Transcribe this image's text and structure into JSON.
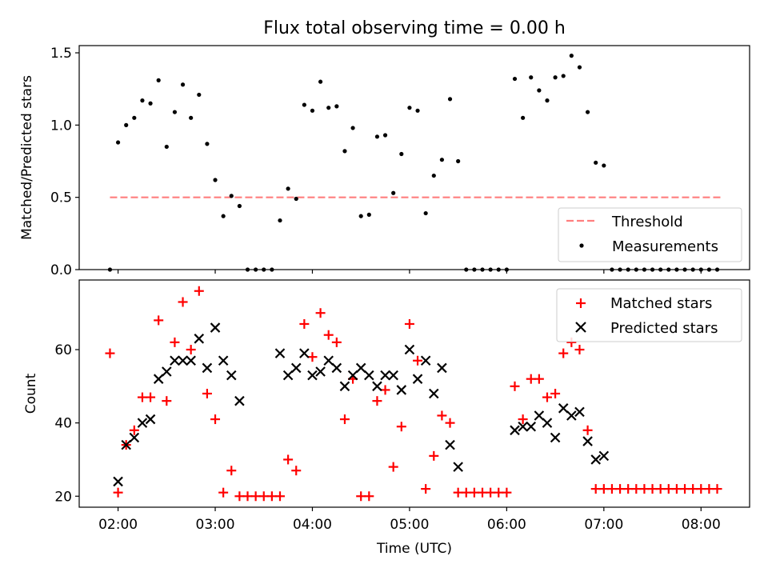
{
  "chart_data": [
    {
      "type": "scatter",
      "title": "Flux total observing time = 0.00 h",
      "ylabel": "Matched/Predicted stars",
      "xlabel": "",
      "xlim": [
        "01:36",
        "08:30"
      ],
      "ylim": [
        0.0,
        1.55
      ],
      "yticks": [
        "0.0",
        "0.5",
        "1.0",
        "1.5"
      ],
      "xticks": [
        "02:00",
        "03:00",
        "04:00",
        "05:00",
        "06:00",
        "07:00",
        "08:00"
      ],
      "grid": false,
      "legend_position": "lower-right",
      "threshold": {
        "name": "Threshold",
        "value": 0.5,
        "x_start": "01:55",
        "x_end": "08:12",
        "color": "#ff7f7f"
      },
      "series": [
        {
          "name": "Measurements",
          "color": "#000000",
          "x": [
            "01:55",
            "02:00",
            "02:05",
            "02:10",
            "02:15",
            "02:20",
            "02:25",
            "02:30",
            "02:35",
            "02:40",
            "02:45",
            "02:50",
            "02:55",
            "03:00",
            "03:05",
            "03:10",
            "03:15",
            "03:20",
            "03:25",
            "03:30",
            "03:35",
            "03:40",
            "03:45",
            "03:50",
            "03:55",
            "04:00",
            "04:05",
            "04:10",
            "04:15",
            "04:20",
            "04:25",
            "04:30",
            "04:35",
            "04:40",
            "04:45",
            "04:50",
            "04:55",
            "05:00",
            "05:05",
            "05:10",
            "05:15",
            "05:20",
            "05:25",
            "05:30",
            "05:35",
            "05:40",
            "05:45",
            "05:50",
            "05:55",
            "06:00",
            "06:05",
            "06:10",
            "06:15",
            "06:20",
            "06:25",
            "06:30",
            "06:35",
            "06:40",
            "06:45",
            "06:50",
            "06:55",
            "07:00",
            "07:05",
            "07:10",
            "07:15",
            "07:20",
            "07:25",
            "07:30",
            "07:35",
            "07:40",
            "07:45",
            "07:50",
            "07:55",
            "08:00",
            "08:05",
            "08:10"
          ],
          "y": [
            0.0,
            0.88,
            1.0,
            1.05,
            1.17,
            1.15,
            1.31,
            0.85,
            1.09,
            1.28,
            1.05,
            1.21,
            0.87,
            0.62,
            0.37,
            0.51,
            0.44,
            0.0,
            0.0,
            0.0,
            0.0,
            0.34,
            0.56,
            0.49,
            1.14,
            1.1,
            1.3,
            1.12,
            1.13,
            0.82,
            0.98,
            0.37,
            0.38,
            0.92,
            0.93,
            0.53,
            0.8,
            1.12,
            1.1,
            0.39,
            0.65,
            0.76,
            1.18,
            0.75,
            0.0,
            0.0,
            0.0,
            0.0,
            0.0,
            0.0,
            1.32,
            1.05,
            1.33,
            1.24,
            1.17,
            1.33,
            1.34,
            1.48,
            1.4,
            1.09,
            0.74,
            0.72,
            0.0,
            0.0,
            0.0,
            0.0,
            0.0,
            0.0,
            0.0,
            0.0,
            0.0,
            0.0,
            0.0,
            0.0,
            0.0,
            0.0
          ]
        }
      ]
    },
    {
      "type": "scatter",
      "title": "",
      "xlabel": "Time (UTC)",
      "ylabel": "Count",
      "xlim": [
        "01:36",
        "08:30"
      ],
      "ylim": [
        17,
        79
      ],
      "yticks": [
        "20",
        "40",
        "60"
      ],
      "xticks": [
        "02:00",
        "03:00",
        "04:00",
        "05:00",
        "06:00",
        "07:00",
        "08:00"
      ],
      "grid": false,
      "legend_position": "upper-right",
      "series": [
        {
          "name": "Matched stars",
          "marker": "+",
          "color": "#ff0000",
          "x": [
            "01:55",
            "02:00",
            "02:05",
            "02:10",
            "02:15",
            "02:20",
            "02:25",
            "02:30",
            "02:35",
            "02:40",
            "02:45",
            "02:50",
            "02:55",
            "03:00",
            "03:05",
            "03:10",
            "03:15",
            "03:20",
            "03:25",
            "03:30",
            "03:35",
            "03:40",
            "03:45",
            "03:50",
            "03:55",
            "04:00",
            "04:05",
            "04:10",
            "04:15",
            "04:20",
            "04:25",
            "04:30",
            "04:35",
            "04:40",
            "04:45",
            "04:50",
            "04:55",
            "05:00",
            "05:05",
            "05:10",
            "05:15",
            "05:20",
            "05:25",
            "05:30",
            "05:35",
            "05:40",
            "05:45",
            "05:50",
            "05:55",
            "06:00",
            "06:05",
            "06:10",
            "06:15",
            "06:20",
            "06:25",
            "06:30",
            "06:35",
            "06:40",
            "06:45",
            "06:50",
            "06:55",
            "07:00",
            "07:05",
            "07:10",
            "07:15",
            "07:20",
            "07:25",
            "07:30",
            "07:35",
            "07:40",
            "07:45",
            "07:50",
            "07:55",
            "08:00",
            "08:05",
            "08:10"
          ],
          "y": [
            59,
            21,
            34,
            38,
            47,
            47,
            68,
            46,
            62,
            73,
            60,
            76,
            48,
            41,
            21,
            27,
            20,
            20,
            20,
            20,
            20,
            20,
            30,
            27,
            67,
            58,
            70,
            64,
            62,
            41,
            52,
            20,
            20,
            46,
            49,
            28,
            39,
            67,
            57,
            22,
            31,
            42,
            40,
            21,
            21,
            21,
            21,
            21,
            21,
            21,
            50,
            41,
            52,
            52,
            47,
            48,
            59,
            62,
            60,
            38,
            22,
            22,
            22,
            22,
            22,
            22,
            22,
            22,
            22,
            22,
            22,
            22,
            22,
            22,
            22,
            22
          ]
        },
        {
          "name": "Predicted stars",
          "marker": "x",
          "color": "#000000",
          "x": [
            "02:00",
            "02:05",
            "02:10",
            "02:15",
            "02:20",
            "02:25",
            "02:30",
            "02:35",
            "02:40",
            "02:45",
            "02:50",
            "02:55",
            "03:00",
            "03:05",
            "03:10",
            "03:15",
            "03:40",
            "03:45",
            "03:50",
            "03:55",
            "04:00",
            "04:05",
            "04:10",
            "04:15",
            "04:20",
            "04:25",
            "04:30",
            "04:35",
            "04:40",
            "04:45",
            "04:50",
            "04:55",
            "05:00",
            "05:05",
            "05:10",
            "05:15",
            "05:20",
            "05:25",
            "05:30",
            "06:05",
            "06:10",
            "06:15",
            "06:20",
            "06:25",
            "06:30",
            "06:35",
            "06:40",
            "06:45",
            "06:50",
            "06:55",
            "07:00"
          ],
          "y": [
            24,
            34,
            36,
            40,
            41,
            52,
            54,
            57,
            57,
            57,
            63,
            55,
            66,
            57,
            53,
            46,
            59,
            53,
            55,
            59,
            53,
            54,
            57,
            55,
            50,
            53,
            55,
            53,
            50,
            53,
            53,
            49,
            60,
            52,
            57,
            48,
            55,
            34,
            28,
            38,
            39,
            39,
            42,
            40,
            36,
            44,
            42,
            43,
            35,
            30,
            31
          ]
        }
      ]
    }
  ]
}
